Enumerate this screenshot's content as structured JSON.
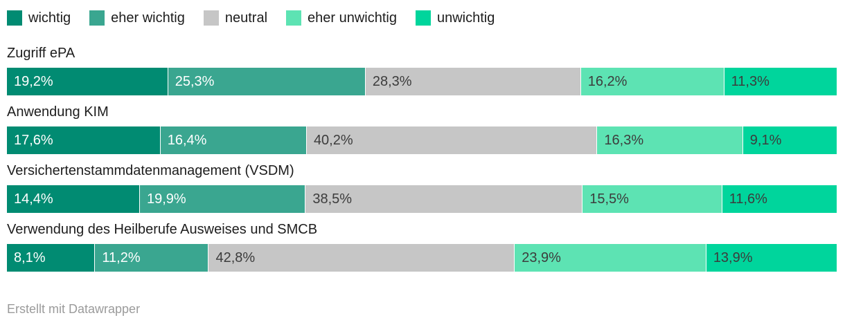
{
  "colors": {
    "wichtig": "#018b72",
    "eher_wichtig": "#3aa690",
    "neutral": "#c6c6c6",
    "eher_unwichtig": "#5de3b3",
    "unwichtig": "#00d59c",
    "text_on_dark": "#ffffff",
    "text_on_light": "#3c3c3c"
  },
  "legend": {
    "items": [
      {
        "label": "wichtig",
        "color": "#018b72"
      },
      {
        "label": "eher wichtig",
        "color": "#3aa690"
      },
      {
        "label": "neutral",
        "color": "#c6c6c6"
      },
      {
        "label": "eher unwichtig",
        "color": "#5de3b3"
      },
      {
        "label": "unwichtig",
        "color": "#00d59c"
      }
    ]
  },
  "rows": [
    {
      "label": "Zugriff ePA",
      "segments": [
        {
          "text": "19,2%",
          "value": 19.2,
          "color": "#018b72",
          "text_color": "#ffffff"
        },
        {
          "text": "25,3%",
          "value": 25.3,
          "color": "#3aa690",
          "text_color": "#ffffff"
        },
        {
          "text": "28,3%",
          "value": 28.3,
          "color": "#c6c6c6",
          "text_color": "#3c3c3c"
        },
        {
          "text": "16,2%",
          "value": 16.2,
          "color": "#5de3b3",
          "text_color": "#3c3c3c"
        },
        {
          "text": "11,3%",
          "value": 11.3,
          "color": "#00d59c",
          "text_color": "#3c3c3c"
        }
      ]
    },
    {
      "label": "Anwendung KIM",
      "segments": [
        {
          "text": "17,6%",
          "value": 17.6,
          "color": "#018b72",
          "text_color": "#ffffff"
        },
        {
          "text": "16,4%",
          "value": 16.4,
          "color": "#3aa690",
          "text_color": "#ffffff"
        },
        {
          "text": "40,2%",
          "value": 40.2,
          "color": "#c6c6c6",
          "text_color": "#3c3c3c"
        },
        {
          "text": "16,3%",
          "value": 16.3,
          "color": "#5de3b3",
          "text_color": "#3c3c3c"
        },
        {
          "text": "9,1%",
          "value": 9.1,
          "color": "#00d59c",
          "text_color": "#3c3c3c"
        }
      ]
    },
    {
      "label": "Versichertenstammdatenmanagement (VSDM)",
      "segments": [
        {
          "text": "14,4%",
          "value": 14.4,
          "color": "#018b72",
          "text_color": "#ffffff"
        },
        {
          "text": "19,9%",
          "value": 19.9,
          "color": "#3aa690",
          "text_color": "#ffffff"
        },
        {
          "text": "38,5%",
          "value": 38.5,
          "color": "#c6c6c6",
          "text_color": "#3c3c3c"
        },
        {
          "text": "15,5%",
          "value": 15.5,
          "color": "#5de3b3",
          "text_color": "#3c3c3c"
        },
        {
          "text": "11,6%",
          "value": 11.6,
          "color": "#00d59c",
          "text_color": "#3c3c3c"
        }
      ]
    },
    {
      "label": "Verwendung des Heilberufe Ausweises und SMCB",
      "segments": [
        {
          "text": "8,1%",
          "value": 8.1,
          "color": "#018b72",
          "text_color": "#ffffff"
        },
        {
          "text": "11,2%",
          "value": 11.2,
          "color": "#3aa690",
          "text_color": "#ffffff"
        },
        {
          "text": "42,8%",
          "value": 42.8,
          "color": "#c6c6c6",
          "text_color": "#3c3c3c"
        },
        {
          "text": "23,9%",
          "value": 23.9,
          "color": "#5de3b3",
          "text_color": "#3c3c3c"
        },
        {
          "text": "13,9%",
          "value": 13.9,
          "color": "#00d59c",
          "text_color": "#3c3c3c"
        }
      ]
    }
  ],
  "footer": {
    "text": "Erstellt mit Datawrapper"
  },
  "chart_data": {
    "type": "bar",
    "variant": "stacked-horizontal",
    "unit": "%",
    "categories": [
      "Zugriff ePA",
      "Anwendung KIM",
      "Versichertenstammdatenmanagement (VSDM)",
      "Verwendung des Heilberufe Ausweises und SMCB"
    ],
    "series": [
      {
        "name": "wichtig",
        "color": "#018b72",
        "values": [
          19.2,
          17.6,
          14.4,
          8.1
        ]
      },
      {
        "name": "eher wichtig",
        "color": "#3aa690",
        "values": [
          25.3,
          16.4,
          19.9,
          11.2
        ]
      },
      {
        "name": "neutral",
        "color": "#c6c6c6",
        "values": [
          28.3,
          40.2,
          38.5,
          42.8
        ]
      },
      {
        "name": "eher unwichtig",
        "color": "#5de3b3",
        "values": [
          16.2,
          16.3,
          15.5,
          23.9
        ]
      },
      {
        "name": "unwichtig",
        "color": "#00d59c",
        "values": [
          11.3,
          9.1,
          11.6,
          13.9
        ]
      }
    ],
    "title": "",
    "xlabel": "",
    "ylabel": "",
    "xlim": [
      0,
      100
    ],
    "grid": false,
    "legend_position": "top-left",
    "value_labels": "inside-start",
    "attribution": "Erstellt mit Datawrapper"
  }
}
